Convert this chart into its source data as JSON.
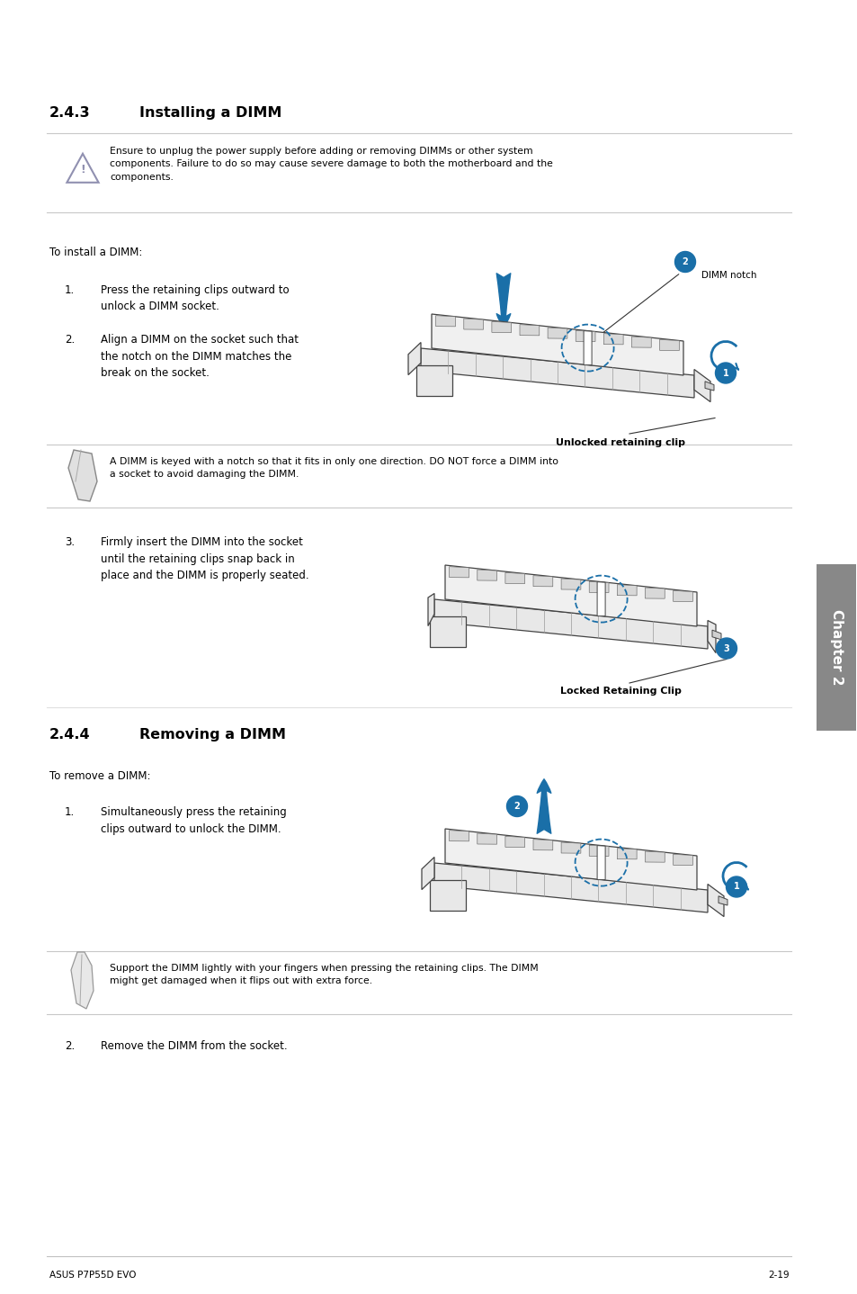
{
  "page_width": 9.54,
  "page_height": 14.38,
  "bg_color": "#ffffff",
  "section_243_title": "2.4.3",
  "section_243_heading": "Installing a DIMM",
  "section_244_title": "2.4.4",
  "section_244_heading": "Removing a DIMM",
  "warning_text": "Ensure to unplug the power supply before adding or removing DIMMs or other system\ncomponents. Failure to do so may cause severe damage to both the motherboard and the\ncomponents.",
  "install_intro": "To install a DIMM:",
  "install_step1_num": "1.",
  "install_step1_text": "Press the retaining clips outward to\nunlock a DIMM socket.",
  "install_step2_num": "2.",
  "install_step2_text": "Align a DIMM on the socket such that\nthe notch on the DIMM matches the\nbreak on the socket.",
  "install_step3_num": "3.",
  "install_step3_text": "Firmly insert the DIMM into the socket\nuntil the retaining clips snap back in\nplace and the DIMM is properly seated.",
  "note_install": "A DIMM is keyed with a notch so that it fits in only one direction. DO NOT force a DIMM into\na socket to avoid damaging the DIMM.",
  "dimm_notch_label": "DIMM notch",
  "unlocked_clip_label": "Unlocked retaining clip",
  "locked_clip_label": "Locked Retaining Clip",
  "remove_intro": "To remove a DIMM:",
  "remove_step1_num": "1.",
  "remove_step1_text": "Simultaneously press the retaining\nclips outward to unlock the DIMM.",
  "remove_step2_num": "2.",
  "remove_step2_text": "Remove the DIMM from the socket.",
  "note_remove": "Support the DIMM lightly with your fingers when pressing the retaining clips. The DIMM\nmight get damaged when it flips out with extra force.",
  "footer_left": "ASUS P7P55D EVO",
  "footer_right": "2-19",
  "chapter_tab": "Chapter 2",
  "text_color": "#000000",
  "blue_color": "#1a6fa8",
  "gray_color": "#808080",
  "light_gray": "#d0d0d0",
  "tab_bg_color": "#888888"
}
